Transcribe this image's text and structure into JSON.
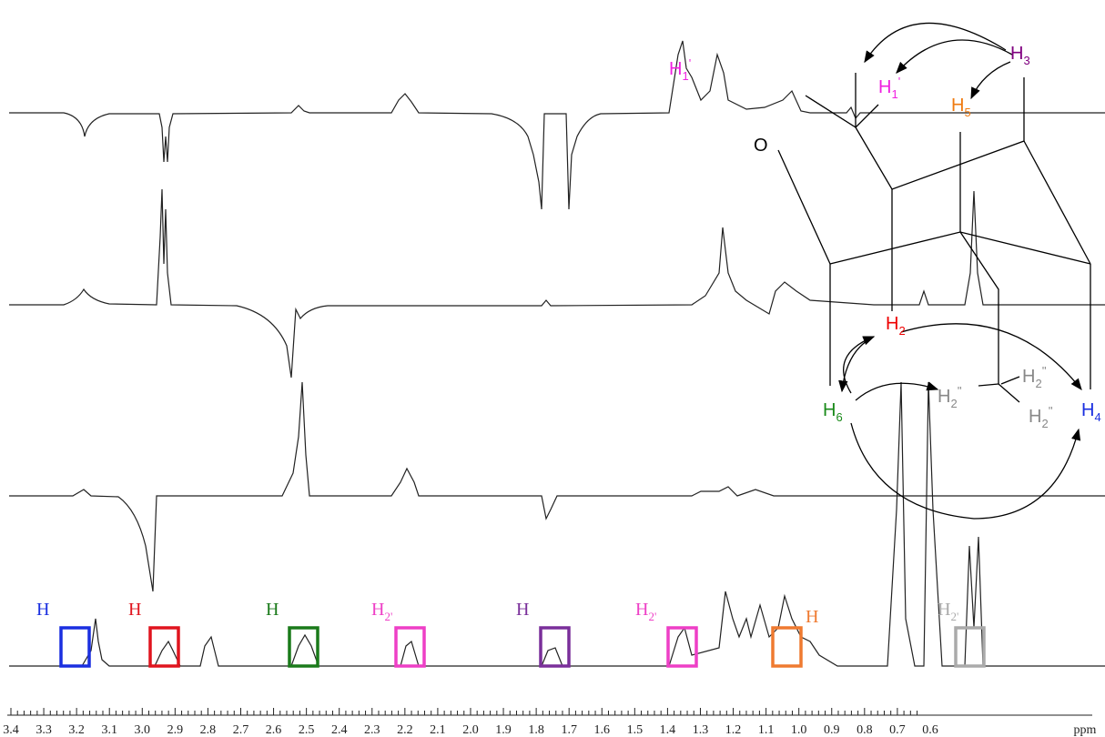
{
  "axis": {
    "ticks": [
      "3.4",
      "3.3",
      "3.2",
      "3.1",
      "3.0",
      "2.9",
      "2.8",
      "2.7",
      "2.6",
      "2.5",
      "2.4",
      "2.3",
      "2.2",
      "2.1",
      "2.0",
      "1.9",
      "1.8",
      "1.7",
      "1.6",
      "1.5",
      "1.4",
      "1.3",
      "1.2",
      "1.1",
      "1.0",
      "0.9",
      "0.8",
      "0.7",
      "0.6"
    ],
    "label": "ppm"
  },
  "assignments": [
    {
      "label": "H",
      "sub": "",
      "color": "#1a2fe0"
    },
    {
      "label": "H",
      "sub": "",
      "color": "#e0141e"
    },
    {
      "label": "H",
      "sub": "",
      "color": "#1a7a1a"
    },
    {
      "label": "H",
      "sub": "2'",
      "color": "#ee3fc6"
    },
    {
      "label": "H",
      "sub": "",
      "color": "#7a2f9a"
    },
    {
      "label": "H",
      "sub": "2'",
      "color": "#ee3fc6"
    },
    {
      "label": "H",
      "sub": "",
      "color": "#ef7a30"
    },
    {
      "label": "H",
      "sub": "2'",
      "color": "#aaaaaa"
    }
  ],
  "molecule": {
    "O": "O",
    "labels": [
      {
        "label": "H",
        "sub": "1",
        "sup": "'",
        "color": "#f020e0"
      },
      {
        "label": "H",
        "sub": "1",
        "sup": "'",
        "color": "#f020e0"
      },
      {
        "label": "H",
        "sub": "5",
        "sup": "",
        "color": "#ef7a10"
      },
      {
        "label": "H",
        "sub": "3",
        "sup": "",
        "color": "#800080"
      },
      {
        "label": "H",
        "sub": "2",
        "sup": "",
        "color": "#ee0000"
      },
      {
        "label": "H",
        "sub": "6",
        "sup": "",
        "color": "#1a8a1a"
      },
      {
        "label": "H",
        "sub": "2",
        "sup": "''",
        "color": "#888888"
      },
      {
        "label": "H",
        "sub": "2",
        "sup": "''",
        "color": "#888888"
      },
      {
        "label": "H",
        "sub": "2",
        "sup": "''",
        "color": "#888888"
      },
      {
        "label": "H",
        "sub": "4",
        "sup": "",
        "color": "#1a2fe0"
      }
    ]
  }
}
